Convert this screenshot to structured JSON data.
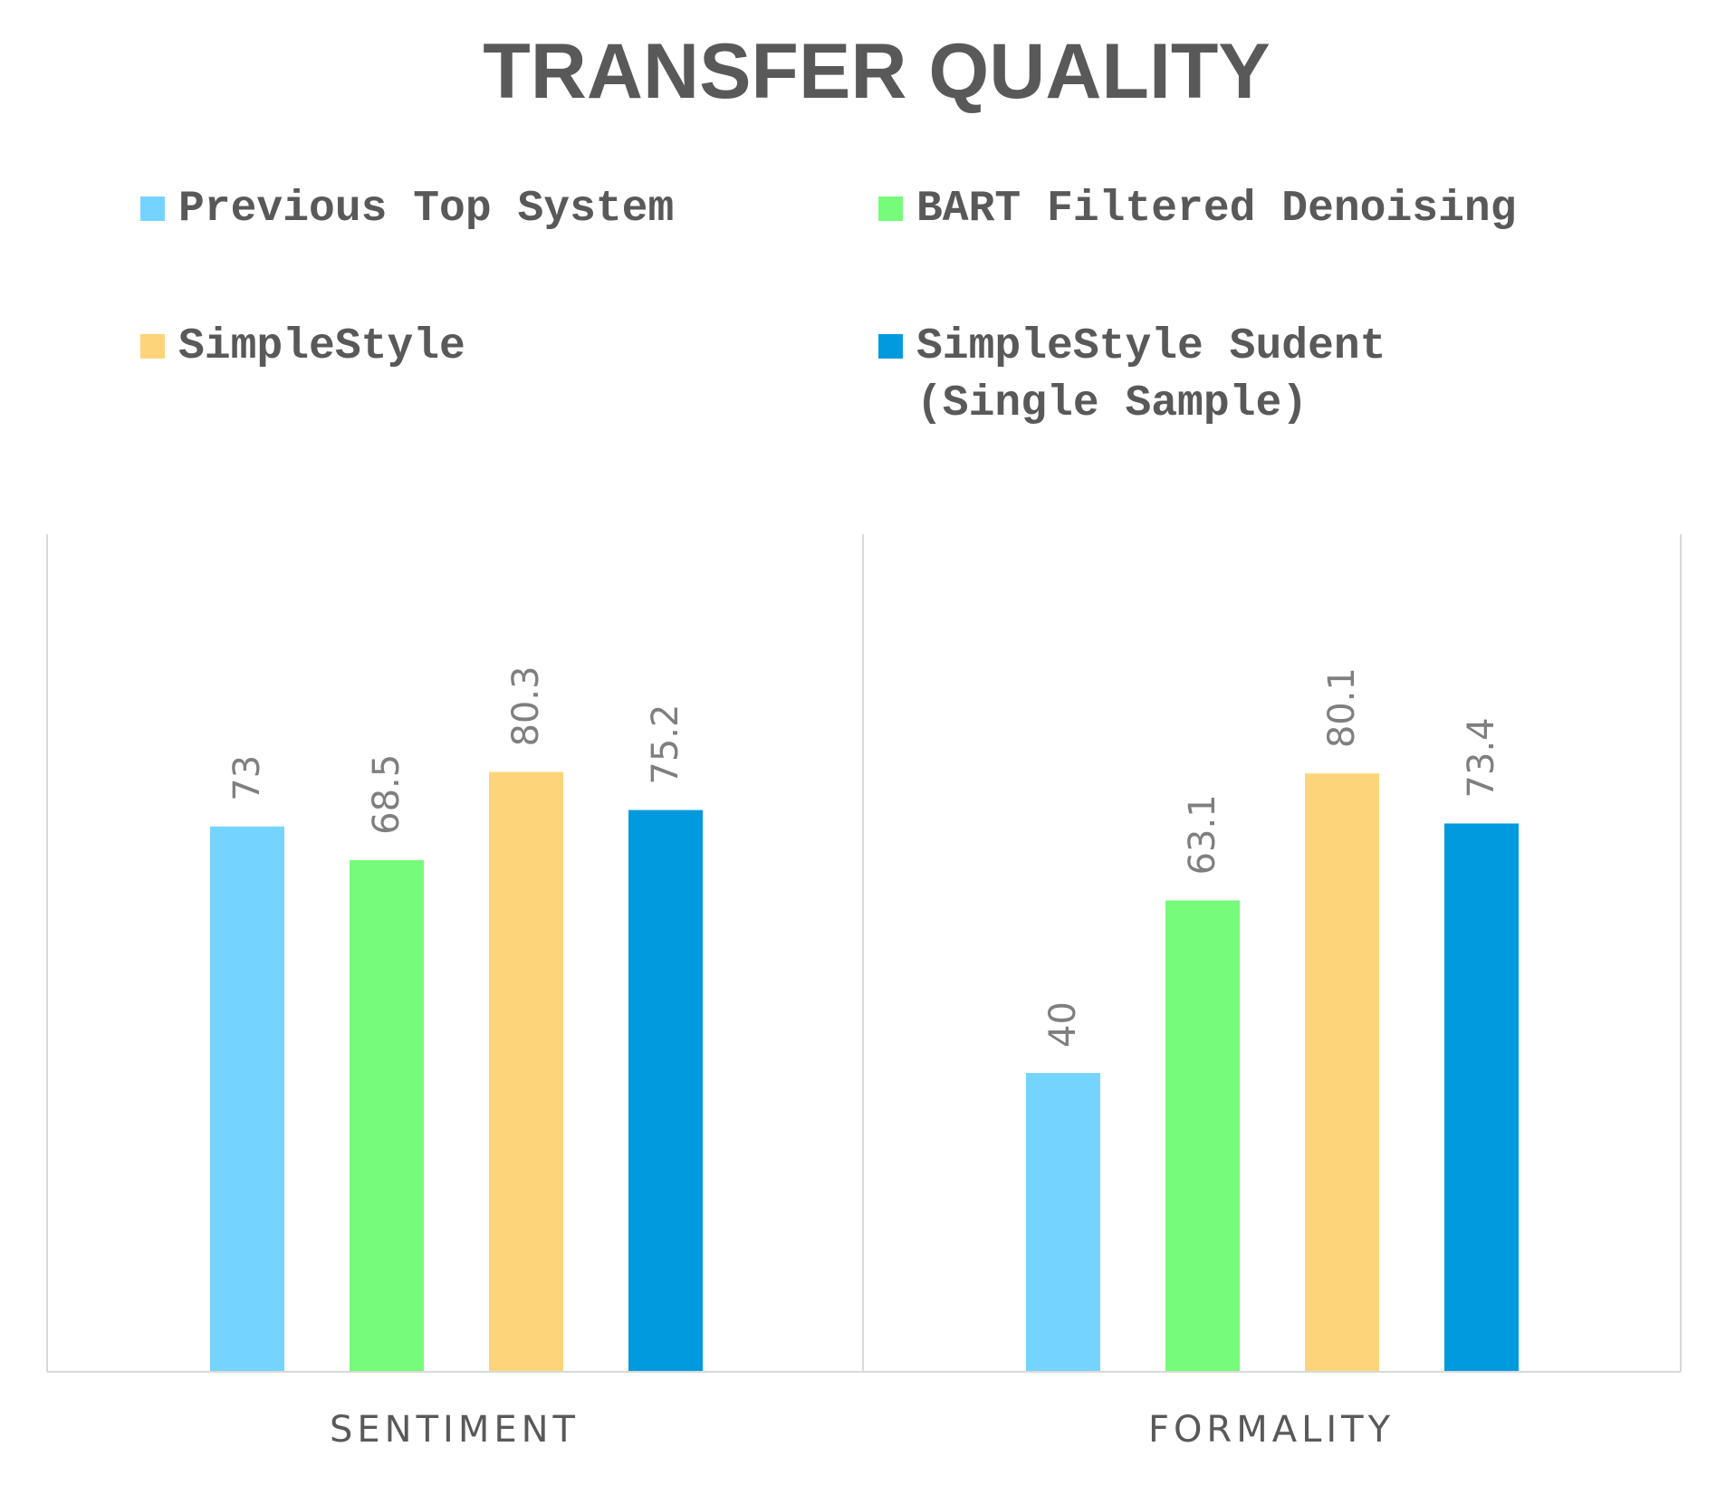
{
  "chart_data": {
    "type": "bar",
    "title": "TRANSFER QUALITY",
    "categories": [
      "SENTIMENT",
      "FORMALITY"
    ],
    "series": [
      {
        "name": "Previous Top System",
        "color": "#75d4ff",
        "values": [
          73,
          40
        ]
      },
      {
        "name": "BART Filtered Denoising",
        "color": "#76fb7a",
        "values": [
          68.5,
          63.1
        ]
      },
      {
        "name": "SimpleStyle",
        "color": "#fdd47a",
        "values": [
          80.3,
          80.1
        ]
      },
      {
        "name": "SimpleStyle Sudent (Single Sample)",
        "legend_lines": [
          "SimpleStyle Sudent",
          "(Single Sample)"
        ],
        "color": "#019ade",
        "values": [
          75.2,
          73.4
        ]
      }
    ],
    "value_labels": [
      [
        "73",
        "40"
      ],
      [
        "68.5",
        "63.1"
      ],
      [
        "80.3",
        "80.1"
      ],
      [
        "75.2",
        "73.4"
      ]
    ],
    "ylim": [
      0,
      100
    ],
    "legend_position": "top",
    "grid": false,
    "xlabel": "",
    "ylabel": ""
  }
}
